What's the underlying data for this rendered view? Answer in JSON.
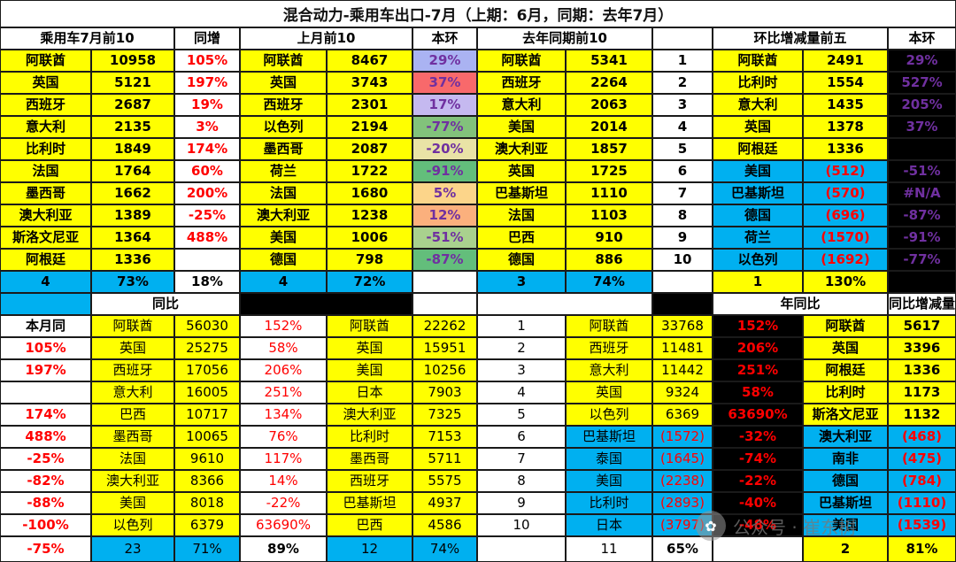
{
  "title": "混合动力-乘用车出口-7月（上期：6月，同期：去年7月）",
  "watermark": {
    "icon": "wechat-icon",
    "text": "公众号 · 崔东树"
  },
  "colors": {
    "yellow": "#ffff00",
    "blue": "#00b0f0",
    "black": "#000000",
    "white": "#ffffff",
    "red": "#ff0000",
    "purple": "#7030a0",
    "text": "#000000"
  },
  "cells": [
    [
      "乘用车7月前10",
      "",
      "b"
    ],
    [
      "同增",
      "",
      "b"
    ],
    [
      "上月前10",
      "",
      "b"
    ],
    [
      "本环",
      "",
      "b"
    ],
    [
      "去年同期前10",
      "",
      "b"
    ],
    [
      "",
      "",
      ""
    ],
    [
      "环比增减量前五",
      "",
      "b"
    ],
    [
      "本环",
      "",
      "b"
    ],
    [
      "阿联酋",
      "yellow",
      "b"
    ],
    [
      "10958",
      "yellow",
      "b"
    ],
    [
      "105%",
      "white",
      "rb"
    ],
    [
      "阿联酋",
      "yellow",
      "b"
    ],
    [
      "8467",
      "yellow",
      "b"
    ],
    [
      "29%",
      "#aab3f2",
      "ub"
    ],
    [
      "阿联酋",
      "yellow",
      "b"
    ],
    [
      "5341",
      "yellow",
      "b"
    ],
    [
      "1",
      "white",
      "b"
    ],
    [
      "阿联酋",
      "yellow",
      "b"
    ],
    [
      "2491",
      "yellow",
      "b"
    ],
    [
      "29%",
      "black",
      "pb"
    ],
    [
      "英国",
      "yellow",
      "b"
    ],
    [
      "5121",
      "yellow",
      "b"
    ],
    [
      "197%",
      "white",
      "rb"
    ],
    [
      "英国",
      "yellow",
      "b"
    ],
    [
      "3743",
      "yellow",
      "b"
    ],
    [
      "37%",
      "#f8696b",
      "ub"
    ],
    [
      "西班牙",
      "yellow",
      "b"
    ],
    [
      "2264",
      "yellow",
      "b"
    ],
    [
      "2",
      "white",
      "b"
    ],
    [
      "比利时",
      "yellow",
      "b"
    ],
    [
      "1554",
      "yellow",
      "b"
    ],
    [
      "527%",
      "black",
      "pb"
    ],
    [
      "西班牙",
      "yellow",
      "b"
    ],
    [
      "2687",
      "yellow",
      "b"
    ],
    [
      "19%",
      "white",
      "rb"
    ],
    [
      "西班牙",
      "yellow",
      "b"
    ],
    [
      "2301",
      "yellow",
      "b"
    ],
    [
      "17%",
      "#c5b9f0",
      "ub"
    ],
    [
      "意大利",
      "yellow",
      "b"
    ],
    [
      "2063",
      "yellow",
      "b"
    ],
    [
      "3",
      "white",
      "b"
    ],
    [
      "意大利",
      "yellow",
      "b"
    ],
    [
      "1435",
      "yellow",
      "b"
    ],
    [
      "205%",
      "black",
      "pb"
    ],
    [
      "意大利",
      "yellow",
      "b"
    ],
    [
      "2135",
      "yellow",
      "b"
    ],
    [
      "3%",
      "white",
      "rb"
    ],
    [
      "以色列",
      "yellow",
      "b"
    ],
    [
      "2194",
      "yellow",
      "b"
    ],
    [
      "-77%",
      "#82c27b",
      "ub"
    ],
    [
      "美国",
      "yellow",
      "b"
    ],
    [
      "2014",
      "yellow",
      "b"
    ],
    [
      "4",
      "white",
      "b"
    ],
    [
      "英国",
      "yellow",
      "b"
    ],
    [
      "1378",
      "yellow",
      "b"
    ],
    [
      "37%",
      "black",
      "pb"
    ],
    [
      "比利时",
      "yellow",
      "b"
    ],
    [
      "1849",
      "yellow",
      "b"
    ],
    [
      "174%",
      "white",
      "rb"
    ],
    [
      "墨西哥",
      "yellow",
      "b"
    ],
    [
      "2087",
      "yellow",
      "b"
    ],
    [
      "-20%",
      "#e9e3a6",
      "ub"
    ],
    [
      "澳大利亚",
      "yellow",
      "b"
    ],
    [
      "1857",
      "yellow",
      "b"
    ],
    [
      "5",
      "white",
      "b"
    ],
    [
      "阿根廷",
      "yellow",
      "b"
    ],
    [
      "1336",
      "yellow",
      "b"
    ],
    [
      "",
      "black",
      ""
    ],
    [
      "法国",
      "yellow",
      "b"
    ],
    [
      "1764",
      "yellow",
      "b"
    ],
    [
      "60%",
      "white",
      "rb"
    ],
    [
      "荷兰",
      "yellow",
      "b"
    ],
    [
      "1722",
      "yellow",
      "b"
    ],
    [
      "-91%",
      "#63be7b",
      "ub"
    ],
    [
      "英国",
      "yellow",
      "b"
    ],
    [
      "1725",
      "yellow",
      "b"
    ],
    [
      "6",
      "white",
      "b"
    ],
    [
      "美国",
      "blue",
      "b"
    ],
    [
      "(512)",
      "blue",
      "rb"
    ],
    [
      "-51%",
      "black",
      "pb"
    ],
    [
      "墨西哥",
      "yellow",
      "b"
    ],
    [
      "1662",
      "yellow",
      "b"
    ],
    [
      "200%",
      "white",
      "rb"
    ],
    [
      "法国",
      "yellow",
      "b"
    ],
    [
      "1680",
      "yellow",
      "b"
    ],
    [
      "5%",
      "#fcd58a",
      "ub"
    ],
    [
      "巴基斯坦",
      "yellow",
      "b"
    ],
    [
      "1110",
      "yellow",
      "b"
    ],
    [
      "7",
      "white",
      "b"
    ],
    [
      "巴基斯坦",
      "blue",
      "b"
    ],
    [
      "(570)",
      "blue",
      "rb"
    ],
    [
      "#N/A",
      "black",
      "pb"
    ],
    [
      "澳大利亚",
      "yellow",
      "b"
    ],
    [
      "1389",
      "yellow",
      "b"
    ],
    [
      "-25%",
      "white",
      "rb"
    ],
    [
      "澳大利亚",
      "yellow",
      "b"
    ],
    [
      "1238",
      "yellow",
      "b"
    ],
    [
      "12%",
      "#fbb07d",
      "ub"
    ],
    [
      "法国",
      "yellow",
      "b"
    ],
    [
      "1103",
      "yellow",
      "b"
    ],
    [
      "8",
      "white",
      "b"
    ],
    [
      "德国",
      "blue",
      "b"
    ],
    [
      "(696)",
      "blue",
      "rb"
    ],
    [
      "-87%",
      "black",
      "pb"
    ],
    [
      "斯洛文尼亚",
      "yellow",
      "b"
    ],
    [
      "1364",
      "yellow",
      "b"
    ],
    [
      "488%",
      "white",
      "rb"
    ],
    [
      "美国",
      "yellow",
      "b"
    ],
    [
      "1006",
      "yellow",
      "b"
    ],
    [
      "-51%",
      "#a9d18e",
      "ub"
    ],
    [
      "巴西",
      "yellow",
      "b"
    ],
    [
      "910",
      "yellow",
      "b"
    ],
    [
      "9",
      "white",
      "b"
    ],
    [
      "荷兰",
      "blue",
      "b"
    ],
    [
      "(1570)",
      "blue",
      "rb"
    ],
    [
      "-91%",
      "black",
      "pb"
    ],
    [
      "阿根廷",
      "yellow",
      "b"
    ],
    [
      "1336",
      "yellow",
      "b"
    ],
    [
      "",
      "white",
      ""
    ],
    [
      "德国",
      "yellow",
      "b"
    ],
    [
      "798",
      "yellow",
      "b"
    ],
    [
      "-87%",
      "#63be7b",
      "ub"
    ],
    [
      "德国",
      "yellow",
      "b"
    ],
    [
      "886",
      "yellow",
      "b"
    ],
    [
      "10",
      "white",
      "b"
    ],
    [
      "以色列",
      "blue",
      "b"
    ],
    [
      "(1692)",
      "blue",
      "rb"
    ],
    [
      "-77%",
      "black",
      "pb"
    ],
    [
      "4",
      "blue",
      "b"
    ],
    [
      "73%",
      "blue",
      "b"
    ],
    [
      "18%",
      "white",
      "b"
    ],
    [
      "4",
      "blue",
      "b"
    ],
    [
      "72%",
      "blue",
      "b"
    ],
    [
      "",
      "white",
      ""
    ],
    [
      "3",
      "blue",
      "b"
    ],
    [
      "74%",
      "blue",
      "b"
    ],
    [
      "",
      "white",
      ""
    ],
    [
      "1",
      "yellow",
      "b"
    ],
    [
      "130%",
      "yellow",
      "b"
    ],
    [
      "",
      "black",
      ""
    ],
    [
      "",
      "blue",
      ""
    ],
    [
      "同比",
      "white",
      "b"
    ],
    [
      "",
      "black",
      ""
    ],
    [
      "",
      "white",
      ""
    ],
    [
      "",
      "white",
      ""
    ],
    [
      "",
      "black",
      ""
    ],
    [
      "年同比",
      "white",
      "b"
    ],
    [
      "本月同比增减量前五",
      "white",
      "b"
    ],
    [
      "本月同",
      "white",
      "b"
    ],
    [
      "阿联酋",
      "yellow",
      ""
    ],
    [
      "56030",
      "yellow",
      ""
    ],
    [
      "152%",
      "white",
      "r"
    ],
    [
      "阿联酋",
      "yellow",
      ""
    ],
    [
      "22262",
      "yellow",
      ""
    ],
    [
      "1",
      "white",
      ""
    ],
    [
      "阿联酋",
      "yellow",
      ""
    ],
    [
      "33768",
      "yellow",
      ""
    ],
    [
      "152%",
      "black",
      "rb"
    ],
    [
      "阿联酋",
      "yellow",
      "b"
    ],
    [
      "5617",
      "yellow",
      "b"
    ],
    [
      "105%",
      "white",
      "rb"
    ],
    [
      "英国",
      "yellow",
      ""
    ],
    [
      "25275",
      "yellow",
      ""
    ],
    [
      "58%",
      "white",
      "r"
    ],
    [
      "英国",
      "yellow",
      ""
    ],
    [
      "15951",
      "yellow",
      ""
    ],
    [
      "2",
      "white",
      ""
    ],
    [
      "西班牙",
      "yellow",
      ""
    ],
    [
      "11481",
      "yellow",
      ""
    ],
    [
      "206%",
      "black",
      "rb"
    ],
    [
      "英国",
      "yellow",
      "b"
    ],
    [
      "3396",
      "yellow",
      "b"
    ],
    [
      "197%",
      "white",
      "rb"
    ],
    [
      "西班牙",
      "yellow",
      ""
    ],
    [
      "17056",
      "yellow",
      ""
    ],
    [
      "206%",
      "white",
      "r"
    ],
    [
      "美国",
      "yellow",
      ""
    ],
    [
      "10256",
      "yellow",
      ""
    ],
    [
      "3",
      "white",
      ""
    ],
    [
      "意大利",
      "yellow",
      ""
    ],
    [
      "11442",
      "yellow",
      ""
    ],
    [
      "251%",
      "black",
      "rb"
    ],
    [
      "阿根廷",
      "yellow",
      "b"
    ],
    [
      "1336",
      "yellow",
      "b"
    ],
    [
      "",
      "white",
      ""
    ],
    [
      "意大利",
      "yellow",
      ""
    ],
    [
      "16005",
      "yellow",
      ""
    ],
    [
      "251%",
      "white",
      "r"
    ],
    [
      "日本",
      "yellow",
      ""
    ],
    [
      "7903",
      "yellow",
      ""
    ],
    [
      "4",
      "white",
      ""
    ],
    [
      "英国",
      "yellow",
      ""
    ],
    [
      "9324",
      "yellow",
      ""
    ],
    [
      "58%",
      "black",
      "rb"
    ],
    [
      "比利时",
      "yellow",
      "b"
    ],
    [
      "1173",
      "yellow",
      "b"
    ],
    [
      "174%",
      "white",
      "rb"
    ],
    [
      "巴西",
      "yellow",
      ""
    ],
    [
      "10717",
      "yellow",
      ""
    ],
    [
      "134%",
      "white",
      "r"
    ],
    [
      "澳大利亚",
      "yellow",
      ""
    ],
    [
      "7325",
      "yellow",
      ""
    ],
    [
      "5",
      "white",
      ""
    ],
    [
      "以色列",
      "yellow",
      ""
    ],
    [
      "6369",
      "yellow",
      ""
    ],
    [
      "63690%",
      "black",
      "rb"
    ],
    [
      "斯洛文尼亚",
      "yellow",
      "b"
    ],
    [
      "1132",
      "yellow",
      "b"
    ],
    [
      "488%",
      "white",
      "rb"
    ],
    [
      "墨西哥",
      "yellow",
      ""
    ],
    [
      "10065",
      "yellow",
      ""
    ],
    [
      "76%",
      "white",
      "r"
    ],
    [
      "比利时",
      "yellow",
      ""
    ],
    [
      "7153",
      "yellow",
      ""
    ],
    [
      "6",
      "white",
      ""
    ],
    [
      "巴基斯坦",
      "blue",
      ""
    ],
    [
      "(1572)",
      "blue",
      "r"
    ],
    [
      "-32%",
      "black",
      "rb"
    ],
    [
      "澳大利亚",
      "blue",
      "b"
    ],
    [
      "(468)",
      "blue",
      "rb"
    ],
    [
      "-25%",
      "white",
      "rb"
    ],
    [
      "法国",
      "yellow",
      ""
    ],
    [
      "9610",
      "yellow",
      ""
    ],
    [
      "117%",
      "white",
      "r"
    ],
    [
      "墨西哥",
      "yellow",
      ""
    ],
    [
      "5711",
      "yellow",
      ""
    ],
    [
      "7",
      "white",
      ""
    ],
    [
      "泰国",
      "blue",
      ""
    ],
    [
      "(1645)",
      "blue",
      "r"
    ],
    [
      "-74%",
      "black",
      "rb"
    ],
    [
      "南非",
      "blue",
      "b"
    ],
    [
      "(475)",
      "blue",
      "rb"
    ],
    [
      "-82%",
      "white",
      "rb"
    ],
    [
      "澳大利亚",
      "yellow",
      ""
    ],
    [
      "8366",
      "yellow",
      ""
    ],
    [
      "14%",
      "white",
      "r"
    ],
    [
      "西班牙",
      "yellow",
      ""
    ],
    [
      "5575",
      "yellow",
      ""
    ],
    [
      "8",
      "white",
      ""
    ],
    [
      "美国",
      "blue",
      ""
    ],
    [
      "(2238)",
      "blue",
      "r"
    ],
    [
      "-22%",
      "black",
      "rb"
    ],
    [
      "德国",
      "blue",
      "b"
    ],
    [
      "(784)",
      "blue",
      "rb"
    ],
    [
      "-88%",
      "white",
      "rb"
    ],
    [
      "美国",
      "yellow",
      ""
    ],
    [
      "8018",
      "yellow",
      ""
    ],
    [
      "-22%",
      "white",
      "r"
    ],
    [
      "巴基斯坦",
      "yellow",
      ""
    ],
    [
      "4937",
      "yellow",
      ""
    ],
    [
      "9",
      "white",
      ""
    ],
    [
      "比利时",
      "blue",
      ""
    ],
    [
      "(2893)",
      "blue",
      "r"
    ],
    [
      "-40%",
      "black",
      "rb"
    ],
    [
      "巴基斯坦",
      "blue",
      "b"
    ],
    [
      "(1110)",
      "blue",
      "rb"
    ],
    [
      "-100%",
      "white",
      "rb"
    ],
    [
      "以色列",
      "yellow",
      ""
    ],
    [
      "6379",
      "yellow",
      ""
    ],
    [
      "63690%",
      "white",
      "r"
    ],
    [
      "巴西",
      "yellow",
      ""
    ],
    [
      "4586",
      "yellow",
      ""
    ],
    [
      "10",
      "white",
      ""
    ],
    [
      "日本",
      "blue",
      ""
    ],
    [
      "(3797)",
      "blue",
      "r"
    ],
    [
      "-48%",
      "black",
      "rb"
    ],
    [
      "美国",
      "blue",
      "b"
    ],
    [
      "(1539)",
      "blue",
      "rb"
    ],
    [
      "-75%",
      "white",
      "rb"
    ],
    [
      "23",
      "blue",
      ""
    ],
    [
      "71%",
      "blue",
      ""
    ],
    [
      "89%",
      "white",
      "b"
    ],
    [
      "12",
      "blue",
      ""
    ],
    [
      "74%",
      "blue",
      ""
    ],
    [
      "",
      "white",
      ""
    ],
    [
      "11",
      "white",
      ""
    ],
    [
      "65%",
      "white",
      "b"
    ],
    [
      "",
      "white",
      ""
    ],
    [
      "2",
      "yellow",
      "b"
    ],
    [
      "81%",
      "yellow",
      "b"
    ],
    [
      "",
      "white",
      ""
    ]
  ]
}
